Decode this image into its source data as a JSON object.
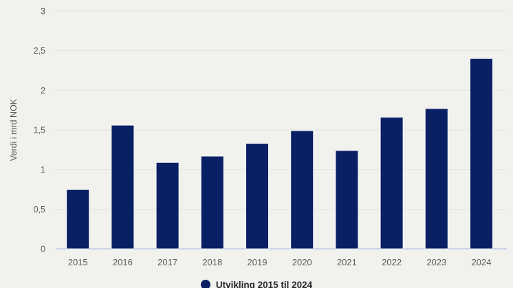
{
  "chart_data": {
    "type": "bar",
    "title": "",
    "categories": [
      "2015",
      "2016",
      "2017",
      "2018",
      "2019",
      "2020",
      "2021",
      "2022",
      "2023",
      "2024"
    ],
    "values": [
      0.75,
      1.56,
      1.09,
      1.17,
      1.33,
      1.49,
      1.24,
      1.66,
      1.77,
      2.4
    ],
    "xlabel": "",
    "ylabel": "Verdi i mrd NOK",
    "ylim": [
      0,
      3
    ],
    "ytick_step": 0.5,
    "ytick_labels": [
      "0",
      "0,5",
      "1",
      "1,5",
      "2",
      "2,5",
      "3"
    ],
    "grid": true,
    "legend": {
      "label": "Utvikling 2015 til 2024",
      "position": "bottom-center",
      "marker": "circle-icon"
    },
    "colors": {
      "bar": "#0a2064",
      "background": "#f1f2ee",
      "grid": "#e3e4df",
      "axis_line": "#ccd3e8",
      "tick_text": "#595959",
      "legend_text": "#26262b",
      "bar_outline": "#ffffff"
    }
  }
}
